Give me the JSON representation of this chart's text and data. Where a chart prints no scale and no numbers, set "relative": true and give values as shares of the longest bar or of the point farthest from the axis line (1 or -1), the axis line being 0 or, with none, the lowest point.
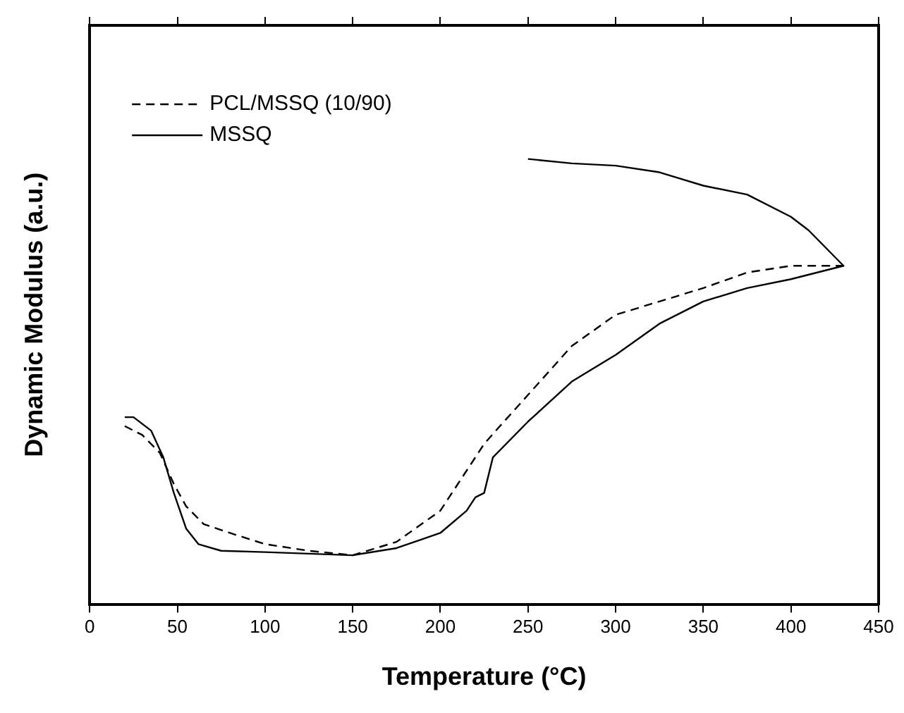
{
  "chart_data": {
    "type": "line",
    "xlabel": "Temperature (°C)",
    "ylabel": "Dynamic Modulus (a.u.)",
    "relative": true,
    "xlim": [
      0,
      450
    ],
    "xticks": [
      0,
      50,
      100,
      150,
      200,
      250,
      300,
      350,
      400,
      450
    ],
    "grid": false,
    "legend": "top left",
    "marker": "none",
    "series": [
      {
        "name": "PCL/MSSQ (10/90)",
        "color": "#000000",
        "line_style": "dashed",
        "x": [
          20,
          30,
          40,
          48,
          55,
          65,
          80,
          100,
          125,
          150,
          175,
          200,
          225,
          234,
          250,
          275,
          300,
          325,
          350,
          375,
          400,
          430
        ],
        "values": [
          0.4,
          0.38,
          0.34,
          0.27,
          0.22,
          0.18,
          0.16,
          0.135,
          0.12,
          0.11,
          0.14,
          0.21,
          0.36,
          0.4,
          0.47,
          0.58,
          0.65,
          0.68,
          0.71,
          0.745,
          0.76,
          0.76
        ]
      },
      {
        "name": "MSSQ",
        "color": "#000000",
        "line_style": "solid",
        "x": [
          20,
          25,
          35,
          42,
          48,
          55,
          62,
          75,
          100,
          150,
          175,
          200,
          215,
          220,
          225,
          230,
          250,
          275,
          300,
          325,
          350,
          375,
          400,
          430,
          410,
          400,
          375,
          350,
          325,
          300,
          275,
          250
        ],
        "values": [
          0.42,
          0.42,
          0.39,
          0.33,
          0.25,
          0.17,
          0.135,
          0.12,
          0.117,
          0.11,
          0.126,
          0.16,
          0.21,
          0.24,
          0.25,
          0.33,
          0.41,
          0.5,
          0.56,
          0.63,
          0.68,
          0.71,
          0.73,
          0.76,
          0.84,
          0.87,
          0.92,
          0.94,
          0.97,
          0.985,
          0.99,
          1.0
        ]
      }
    ]
  }
}
